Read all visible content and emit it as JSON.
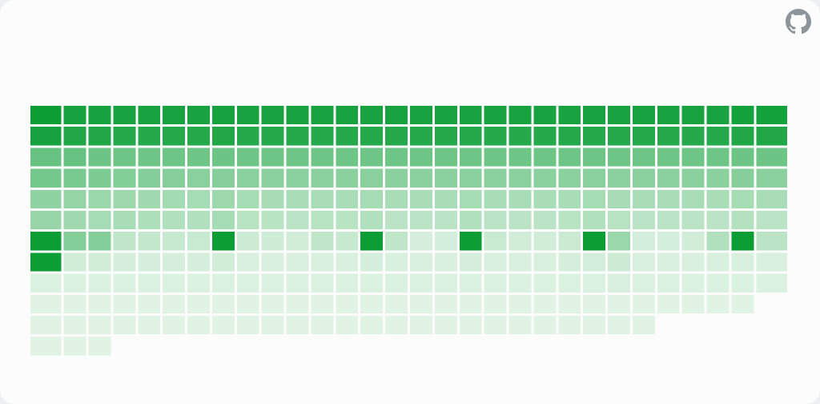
{
  "app": {
    "icons": {
      "repo_link": "github-icon"
    }
  },
  "colors": {
    "accent": "#0b9e35",
    "empty_cell": "#e7f6ea",
    "background": "#fcfcfd"
  },
  "chart_data": {
    "type": "heatmap",
    "title": "",
    "xlabel": "",
    "ylabel": "",
    "value_range": [
      0,
      1
    ],
    "color_scale": [
      "#e7f6ea",
      "#0b9e35"
    ],
    "columns": 30,
    "rows": 12,
    "column_heights": [
      12,
      12,
      12,
      11,
      11,
      11,
      11,
      11,
      11,
      11,
      11,
      11,
      11,
      11,
      11,
      11,
      11,
      11,
      11,
      11,
      11,
      11,
      11,
      11,
      11,
      10,
      10,
      10,
      10,
      9
    ],
    "values": [
      [
        1.0,
        0.95,
        0.58,
        0.52,
        0.4,
        0.36,
        1.0,
        1.0,
        0.05,
        0.03,
        0.03,
        0.03
      ],
      [
        0.95,
        0.9,
        0.58,
        0.5,
        0.38,
        0.32,
        0.45,
        0.1,
        0.05,
        0.03,
        0.03,
        0.03
      ],
      [
        0.95,
        0.9,
        0.56,
        0.48,
        0.35,
        0.3,
        0.45,
        0.1,
        0.05,
        0.03,
        0.03,
        0.03
      ],
      [
        0.94,
        0.88,
        0.55,
        0.46,
        0.33,
        0.28,
        0.18,
        0.08,
        0.05,
        0.03,
        0.03
      ],
      [
        0.94,
        0.88,
        0.55,
        0.45,
        0.32,
        0.26,
        0.16,
        0.08,
        0.05,
        0.03,
        0.03
      ],
      [
        0.94,
        0.88,
        0.55,
        0.44,
        0.31,
        0.25,
        0.15,
        0.08,
        0.05,
        0.03,
        0.03
      ],
      [
        0.94,
        0.88,
        0.55,
        0.43,
        0.3,
        0.24,
        0.14,
        0.08,
        0.05,
        0.03,
        0.03
      ],
      [
        0.95,
        0.9,
        0.56,
        0.44,
        0.33,
        0.3,
        1.0,
        0.1,
        0.05,
        0.03,
        0.03
      ],
      [
        0.94,
        0.88,
        0.55,
        0.43,
        0.3,
        0.22,
        0.12,
        0.07,
        0.05,
        0.03,
        0.03
      ],
      [
        0.94,
        0.88,
        0.55,
        0.42,
        0.29,
        0.21,
        0.11,
        0.07,
        0.05,
        0.03,
        0.03
      ],
      [
        0.94,
        0.88,
        0.55,
        0.42,
        0.28,
        0.2,
        0.1,
        0.07,
        0.05,
        0.03,
        0.03
      ],
      [
        0.94,
        0.88,
        0.55,
        0.42,
        0.28,
        0.22,
        0.18,
        0.07,
        0.05,
        0.03,
        0.03
      ],
      [
        0.94,
        0.88,
        0.55,
        0.42,
        0.28,
        0.21,
        0.15,
        0.07,
        0.05,
        0.03,
        0.03
      ],
      [
        0.94,
        0.88,
        0.55,
        0.43,
        0.3,
        0.24,
        1.0,
        0.08,
        0.05,
        0.03,
        0.03
      ],
      [
        0.94,
        0.88,
        0.55,
        0.42,
        0.28,
        0.2,
        0.18,
        0.07,
        0.05,
        0.03,
        0.03
      ],
      [
        0.94,
        0.88,
        0.55,
        0.42,
        0.28,
        0.2,
        0.08,
        0.07,
        0.05,
        0.03,
        0.03
      ],
      [
        0.94,
        0.88,
        0.55,
        0.42,
        0.28,
        0.2,
        0.09,
        0.07,
        0.05,
        0.03,
        0.03
      ],
      [
        0.94,
        0.88,
        0.55,
        0.43,
        0.3,
        0.24,
        1.0,
        0.08,
        0.05,
        0.03,
        0.03
      ],
      [
        0.94,
        0.88,
        0.55,
        0.42,
        0.28,
        0.2,
        0.14,
        0.07,
        0.05,
        0.03,
        0.03
      ],
      [
        0.94,
        0.88,
        0.55,
        0.42,
        0.28,
        0.2,
        0.1,
        0.07,
        0.05,
        0.03,
        0.03
      ],
      [
        0.94,
        0.88,
        0.55,
        0.42,
        0.28,
        0.2,
        0.1,
        0.07,
        0.05,
        0.03,
        0.03
      ],
      [
        0.94,
        0.88,
        0.55,
        0.42,
        0.28,
        0.21,
        0.13,
        0.08,
        0.05,
        0.03,
        0.03
      ],
      [
        0.94,
        0.88,
        0.55,
        0.43,
        0.3,
        0.24,
        1.0,
        0.09,
        0.06,
        0.03,
        0.03
      ],
      [
        0.94,
        0.88,
        0.55,
        0.42,
        0.29,
        0.22,
        0.35,
        0.12,
        0.07,
        0.03,
        0.03
      ],
      [
        0.94,
        0.88,
        0.55,
        0.42,
        0.28,
        0.2,
        0.09,
        0.07,
        0.05,
        0.03,
        0.03
      ],
      [
        0.94,
        0.88,
        0.55,
        0.42,
        0.28,
        0.2,
        0.09,
        0.07,
        0.05,
        0.03
      ],
      [
        0.94,
        0.88,
        0.55,
        0.42,
        0.28,
        0.2,
        0.1,
        0.07,
        0.05,
        0.03
      ],
      [
        0.94,
        0.88,
        0.55,
        0.42,
        0.28,
        0.2,
        0.25,
        0.07,
        0.05,
        0.03
      ],
      [
        0.96,
        0.9,
        0.56,
        0.44,
        0.3,
        0.23,
        1.0,
        0.07,
        0.05,
        0.03
      ],
      [
        0.96,
        0.9,
        0.56,
        0.42,
        0.28,
        0.2,
        0.2,
        0.07,
        0.05
      ]
    ]
  }
}
